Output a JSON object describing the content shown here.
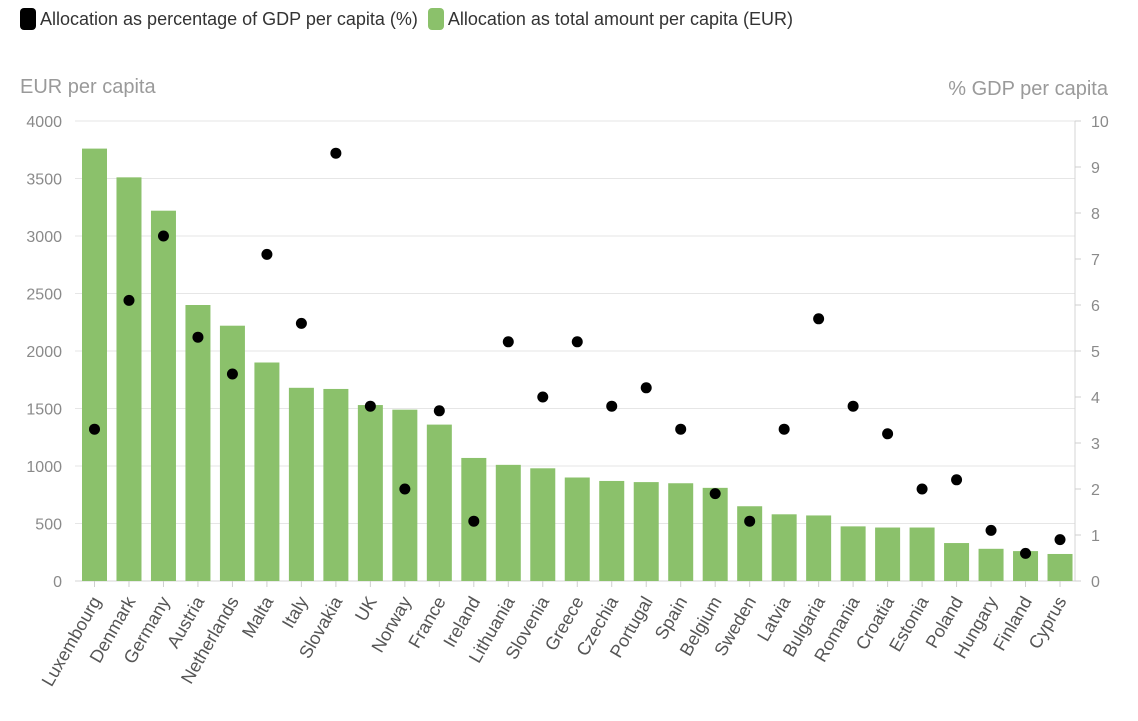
{
  "legend": {
    "series1_label": "Allocation as percentage of GDP per capita (%)",
    "series2_label": "Allocation as total amount per capita (EUR)",
    "series1_color": "#000000",
    "series2_color": "#8bc16b"
  },
  "chart_data": {
    "type": "bar",
    "ylabel_left": "EUR per capita",
    "ylabel_right": "% GDP per capita",
    "ylim_left": [
      0,
      4000
    ],
    "ylim_right": [
      0,
      10
    ],
    "yticks_left": [
      0,
      500,
      1000,
      1500,
      2000,
      2500,
      3000,
      3500,
      4000
    ],
    "yticks_right": [
      0,
      1,
      2,
      3,
      4,
      5,
      6,
      7,
      8,
      9,
      10
    ],
    "grid": true,
    "legend_position": "top-left",
    "categories": [
      "Luxembourg",
      "Denmark",
      "Germany",
      "Austria",
      "Netherlands",
      "Malta",
      "Italy",
      "Slovakia",
      "UK",
      "Norway",
      "France",
      "Ireland",
      "Lithuania",
      "Slovenia",
      "Greece",
      "Czechia",
      "Portugal",
      "Spain",
      "Belgium",
      "Sweden",
      "Latvia",
      "Bulgaria",
      "Romania",
      "Croatia",
      "Estonia",
      "Poland",
      "Hungary",
      "Finland",
      "Cyprus"
    ],
    "series": [
      {
        "name": "Allocation as total amount per capita (EUR)",
        "kind": "bar",
        "axis": "left",
        "color": "#8bc16b",
        "values": [
          3760,
          3510,
          3220,
          2400,
          2220,
          1900,
          1680,
          1670,
          1530,
          1490,
          1360,
          1070,
          1010,
          980,
          900,
          870,
          860,
          850,
          810,
          650,
          580,
          570,
          475,
          465,
          465,
          330,
          280,
          260,
          235
        ]
      },
      {
        "name": "Allocation as percentage of GDP per capita (%)",
        "kind": "scatter",
        "axis": "right",
        "color": "#000000",
        "values": [
          3.3,
          6.1,
          7.5,
          5.3,
          4.5,
          7.1,
          5.6,
          9.3,
          3.8,
          2.0,
          3.7,
          1.3,
          5.2,
          4.0,
          5.2,
          3.8,
          4.2,
          3.3,
          1.9,
          1.3,
          3.3,
          5.7,
          3.8,
          3.2,
          2.0,
          2.2,
          1.1,
          0.6,
          0.9
        ]
      }
    ]
  }
}
